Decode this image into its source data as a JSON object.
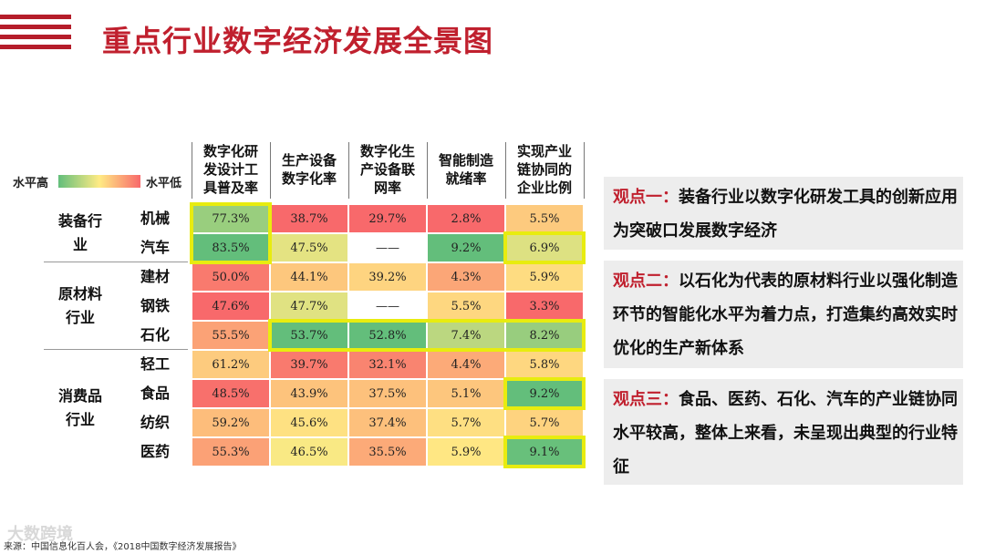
{
  "header": {
    "title": "重点行业数字经济发展全景图"
  },
  "legend": {
    "high_label": "水平高",
    "low_label": "水平低"
  },
  "chart_data": {
    "type": "heatmap",
    "title": "重点行业数字经济发展全景图",
    "color_scale": {
      "high": "#63be7b",
      "mid": "#ffeb84",
      "low": "#f8696b"
    },
    "columns": [
      "数字化研\n发设计工\n具普及率",
      "生产设备\n数字化率",
      "数字化生\n产设备联\n网率",
      "智能制造\n就绪率",
      "实现产业\n链协同的\n企业比例"
    ],
    "groups": [
      {
        "name": "装备行\n业",
        "rows": [
          "机械",
          "汽车"
        ]
      },
      {
        "name": "原材料\n行业",
        "rows": [
          "建材",
          "钢铁",
          "石化"
        ]
      },
      {
        "name": "消费品\n行业",
        "rows": [
          "轻工",
          "食品",
          "纺织",
          "医药"
        ]
      }
    ],
    "rows": [
      {
        "name": "机械",
        "values": [
          "77.3%",
          "38.7%",
          "29.7%",
          "2.8%",
          "5.5%"
        ]
      },
      {
        "name": "汽车",
        "values": [
          "83.5%",
          "47.5%",
          "——",
          "9.2%",
          "6.9%"
        ]
      },
      {
        "name": "建材",
        "values": [
          "50.0%",
          "44.1%",
          "39.2%",
          "4.3%",
          "5.9%"
        ]
      },
      {
        "name": "钢铁",
        "values": [
          "47.6%",
          "47.7%",
          "——",
          "5.5%",
          "3.3%"
        ]
      },
      {
        "name": "石化",
        "values": [
          "55.5%",
          "53.7%",
          "52.8%",
          "7.4%",
          "8.2%"
        ]
      },
      {
        "name": "轻工",
        "values": [
          "61.2%",
          "39.7%",
          "32.1%",
          "4.4%",
          "5.8%"
        ]
      },
      {
        "name": "食品",
        "values": [
          "48.5%",
          "43.9%",
          "37.5%",
          "5.1%",
          "9.2%"
        ]
      },
      {
        "name": "纺织",
        "values": [
          "59.2%",
          "45.6%",
          "37.4%",
          "5.7%",
          "5.7%"
        ]
      },
      {
        "name": "医药",
        "values": [
          "55.3%",
          "46.5%",
          "35.5%",
          "5.9%",
          "9.1%"
        ]
      }
    ],
    "highlights": [
      {
        "rows": [
          0,
          1
        ],
        "cols": [
          0,
          0
        ]
      },
      {
        "rows": [
          1,
          1
        ],
        "cols": [
          4,
          4
        ]
      },
      {
        "rows": [
          4,
          4
        ],
        "cols": [
          1,
          4
        ]
      },
      {
        "rows": [
          6,
          6
        ],
        "cols": [
          4,
          4
        ]
      },
      {
        "rows": [
          8,
          8
        ],
        "cols": [
          4,
          4
        ]
      }
    ],
    "highlight_color": "#e8ec0f"
  },
  "points": [
    {
      "tag": "观点一：",
      "text": "装备行业以数字化研发工具的创新应用为突破口发展数字经济"
    },
    {
      "tag": "观点二：",
      "text": "以石化为代表的原材料行业以强化制造环节的智能化水平为着力点，打造集约高效实时优化的生产新体系"
    },
    {
      "tag": "观点三：",
      "text": "食品、医药、石化、汽车的产业链协同水平较高，整体上来看，未呈现出典型的行业特征"
    }
  ],
  "footer": {
    "source": "来源：中国信息化百人会，《2018中国数字经济发展报告》",
    "watermark": "大数跨境"
  }
}
